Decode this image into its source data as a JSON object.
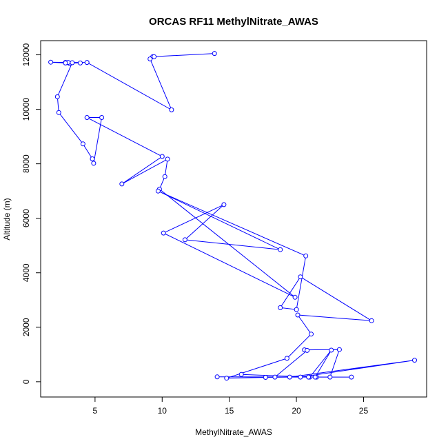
{
  "chart_data": {
    "type": "scatter",
    "title": "ORCAS RF11 MethylNitrate_AWAS",
    "xlabel": "MethylNitrate_AWAS",
    "ylabel": "Altitude (m)",
    "xlim": [
      0.95,
      29.7
    ],
    "ylim": [
      -560,
      12520
    ],
    "xticks": [
      5,
      10,
      15,
      20,
      25
    ],
    "yticks": [
      0,
      2000,
      4000,
      6000,
      8000,
      10000,
      12000
    ],
    "grid": false,
    "legend": "none",
    "line_color": "#0000ff",
    "marker": "open-circle",
    "connected": true,
    "series": [
      {
        "x": [
          13.9,
          9.3,
          9.4,
          9.1,
          10.7,
          4.4,
          2.8,
          3.1,
          3.0,
          1.7,
          2.8,
          3.9,
          3.3,
          2.2,
          2.3,
          4.1,
          4.8,
          4.9,
          5.5,
          4.4,
          10.0,
          7.0,
          10.4,
          10.2,
          9.8,
          19.9,
          10.1,
          14.6,
          11.7,
          18.8,
          9.7,
          20.7,
          20.0,
          18.8,
          20.3,
          25.6,
          20.1,
          21.1,
          19.3,
          14.8,
          17.7,
          19.5,
          28.8,
          20.3,
          21.5,
          21.4,
          22.6,
          21.0,
          22.5,
          23.2,
          20.6,
          20.8,
          18.4,
          24.1,
          14.1,
          20.9,
          15.9
        ],
        "y": [
          12050,
          11930,
          11930,
          11850,
          9980,
          11720,
          11720,
          11680,
          11720,
          11730,
          11700,
          11700,
          11710,
          10460,
          9880,
          8730,
          8180,
          8020,
          9700,
          9700,
          8270,
          7260,
          8170,
          7530,
          7070,
          3100,
          5460,
          6500,
          5210,
          4850,
          7000,
          4620,
          2650,
          2720,
          3850,
          2240,
          2450,
          1750,
          860,
          130,
          160,
          170,
          790,
          170,
          170,
          170,
          1160,
          170,
          170,
          1180,
          1170,
          1150,
          170,
          170,
          180,
          170,
          270
        ]
      }
    ]
  }
}
